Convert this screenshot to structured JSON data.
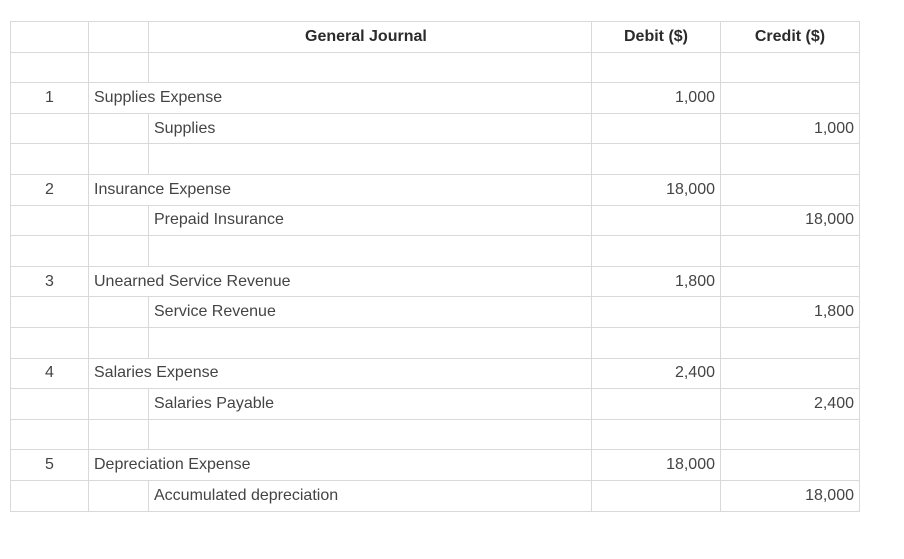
{
  "header": {
    "title": "General Journal",
    "debit": "Debit ($)",
    "credit": "Credit ($)"
  },
  "entries": [
    {
      "number": "1",
      "debit_account": "Supplies Expense",
      "credit_account": "Supplies",
      "debit_amount": "1,000",
      "credit_amount": "1,000"
    },
    {
      "number": "2",
      "debit_account": "Insurance Expense",
      "credit_account": "Prepaid Insurance",
      "debit_amount": "18,000",
      "credit_amount": "18,000"
    },
    {
      "number": "3",
      "debit_account": "Unearned Service Revenue",
      "credit_account": "Service Revenue",
      "debit_amount": "1,800",
      "credit_amount": "1,800"
    },
    {
      "number": "4",
      "debit_account": "Salaries Expense",
      "credit_account": "Salaries Payable",
      "debit_amount": "2,400",
      "credit_amount": "2,400"
    },
    {
      "number": "5",
      "debit_account": "Depreciation Expense",
      "credit_account": "Accumulated depreciation",
      "debit_amount": "18,000",
      "credit_amount": "18,000"
    }
  ]
}
